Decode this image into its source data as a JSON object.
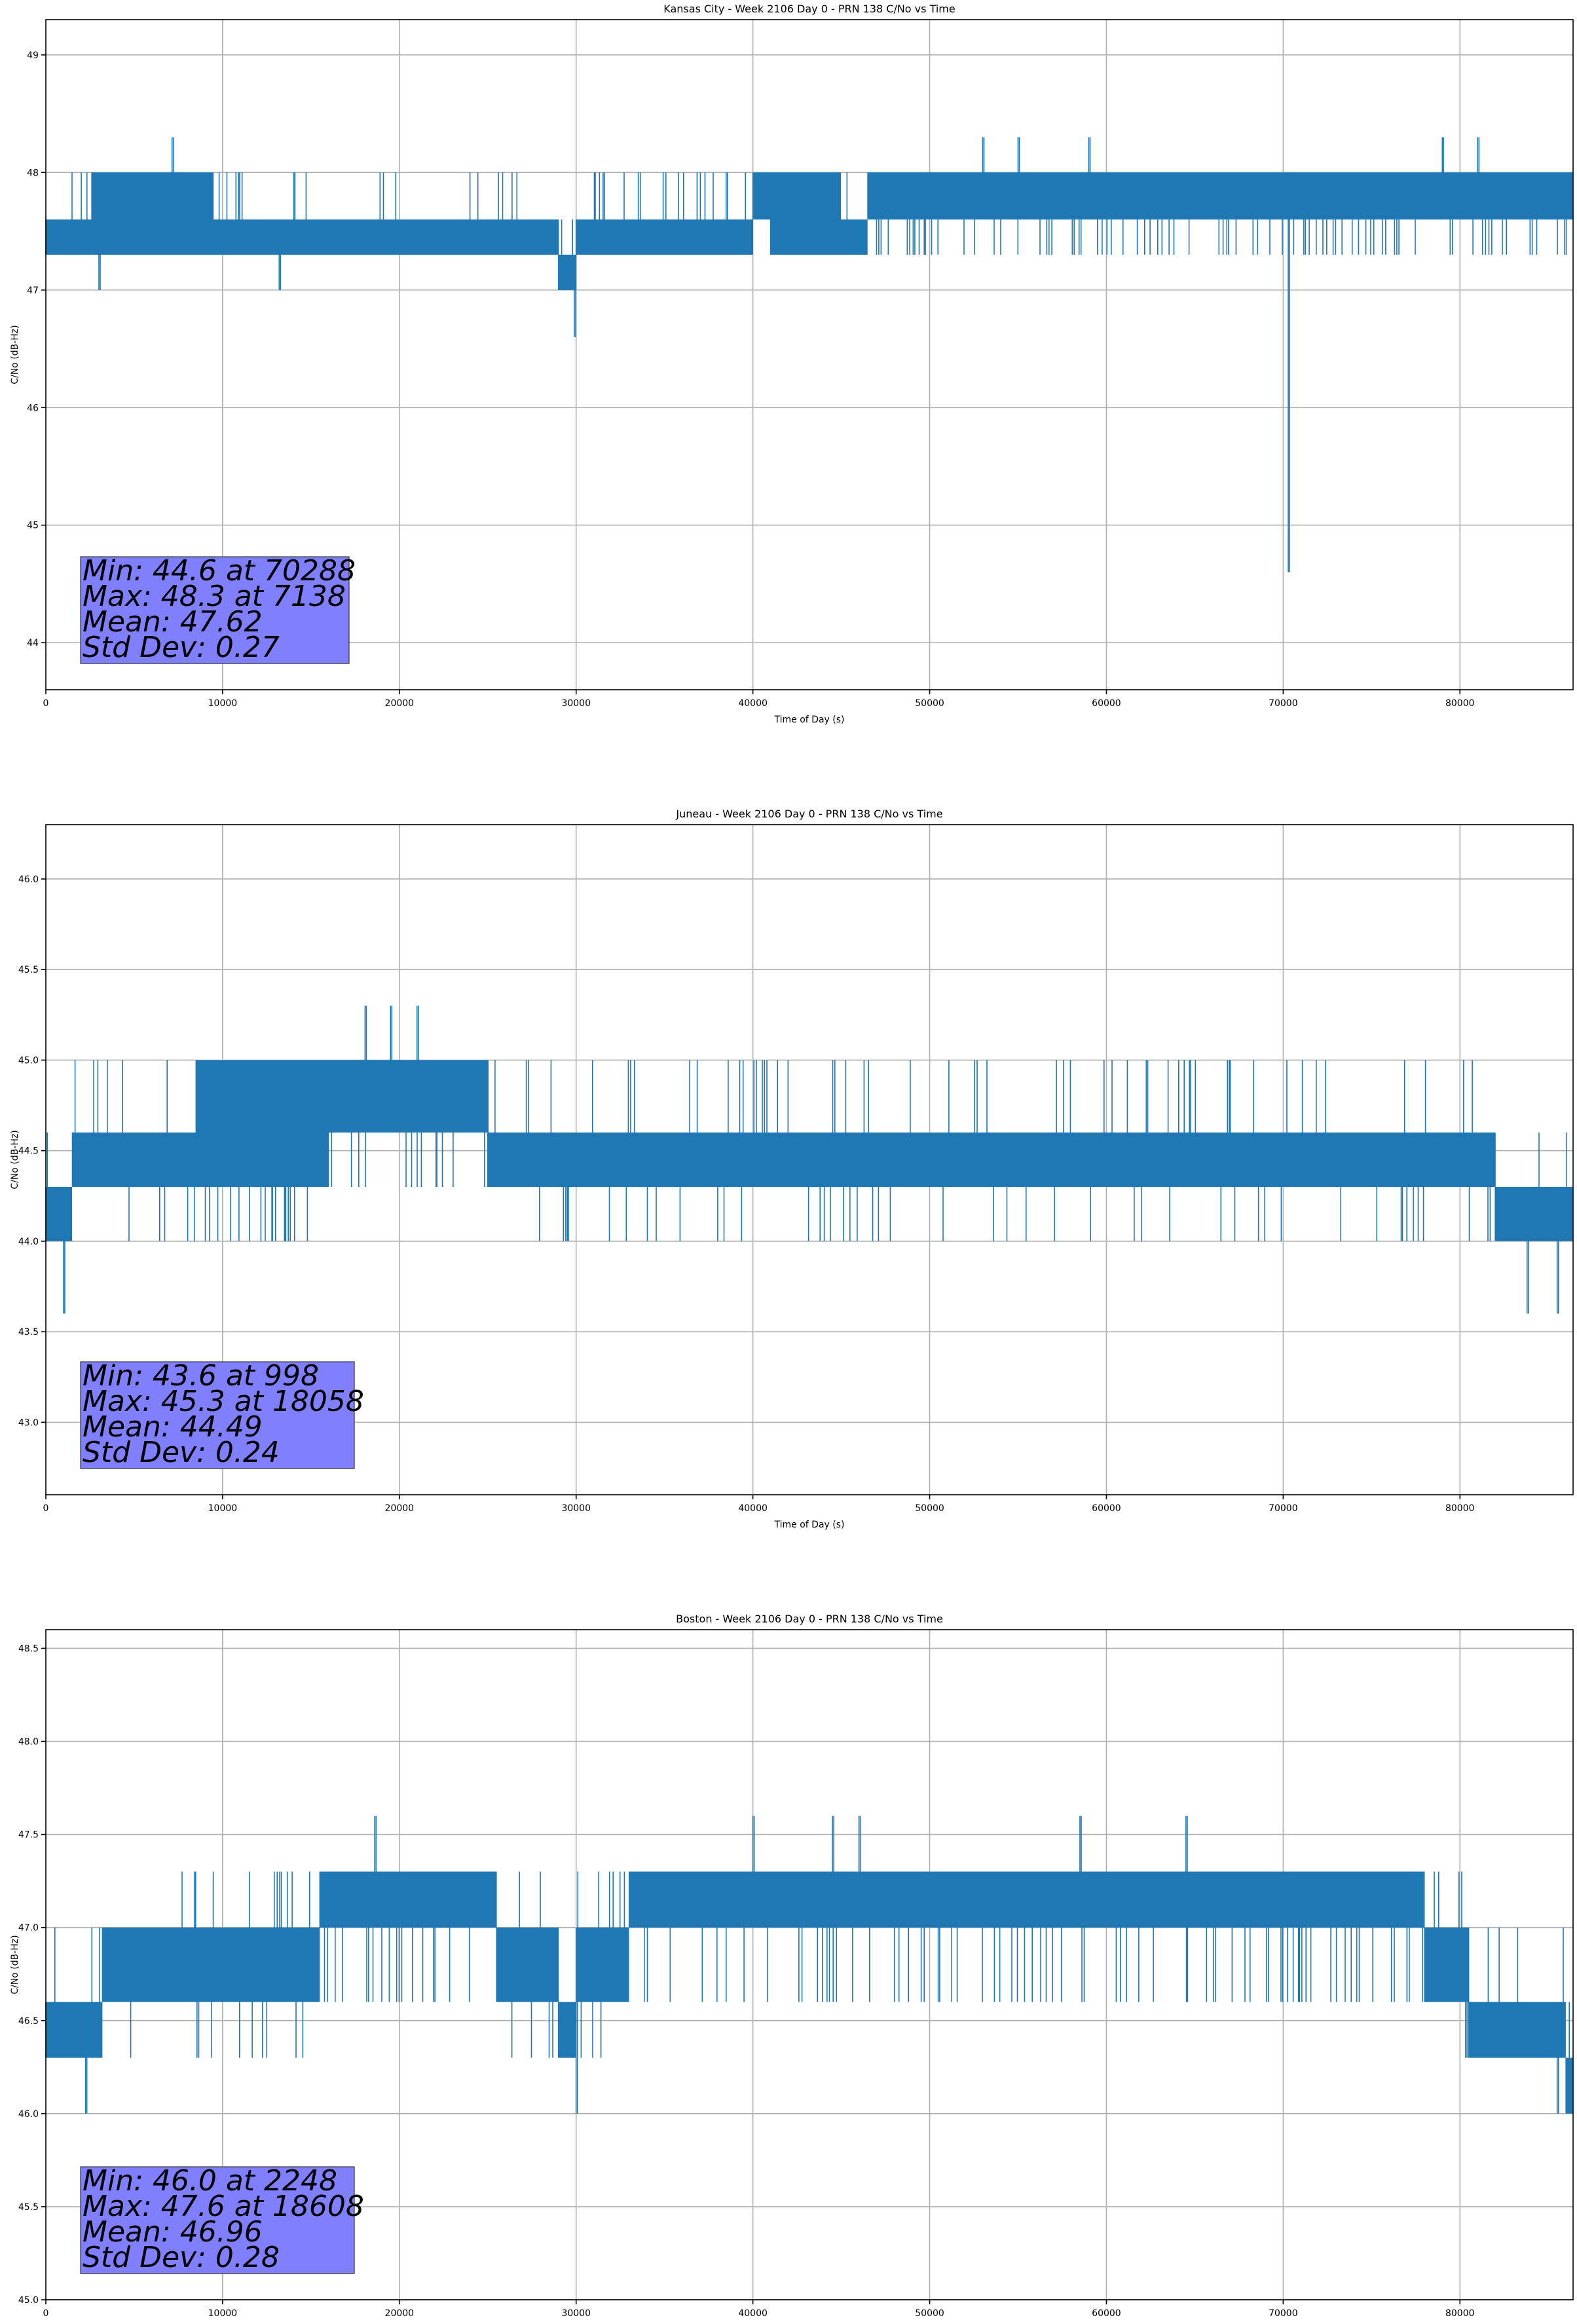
{
  "chart_data": [
    {
      "type": "line",
      "title": "Kansas City - Week 2106 Day 0 - PRN 138 C/No vs Time",
      "xlabel": "Time of Day (s)",
      "ylabel": "C/No (dB-Hz)",
      "xlim": [
        0,
        86400
      ],
      "ylim": [
        43.6,
        49.3
      ],
      "xticks": [
        0,
        10000,
        20000,
        30000,
        40000,
        50000,
        60000,
        70000,
        80000
      ],
      "yticks": [
        44,
        45,
        46,
        47,
        48,
        49
      ],
      "ytick_decimals": 0,
      "grid": true,
      "color": "#1f77b4",
      "levels": [
        47.3,
        47.6,
        48.0
      ],
      "segments": [
        {
          "x": [
            0,
            2600
          ],
          "lo": 47.3,
          "hi": 47.6
        },
        {
          "x": [
            2600,
            9500
          ],
          "lo": 47.3,
          "hi": 48.0
        },
        {
          "x": [
            9500,
            24000
          ],
          "lo": 47.3,
          "hi": 47.6
        },
        {
          "x": [
            24000,
            29000
          ],
          "lo": 47.3,
          "hi": 47.6
        },
        {
          "x": [
            29000,
            30000
          ],
          "lo": 47.0,
          "hi": 47.3
        },
        {
          "x": [
            30000,
            40000
          ],
          "lo": 47.3,
          "hi": 47.6
        },
        {
          "x": [
            40000,
            41000
          ],
          "lo": 47.6,
          "hi": 48.0
        },
        {
          "x": [
            41000,
            45000
          ],
          "lo": 47.3,
          "hi": 48.0
        },
        {
          "x": [
            45000,
            46500
          ],
          "lo": 47.3,
          "hi": 47.6
        },
        {
          "x": [
            46500,
            86400
          ],
          "lo": 47.6,
          "hi": 48.0
        }
      ],
      "spikes": [
        {
          "x": 3000,
          "y": 47.0
        },
        {
          "x": 7138,
          "y": 48.3
        },
        {
          "x": 13200,
          "y": 47.0
        },
        {
          "x": 29900,
          "y": 46.6
        },
        {
          "x": 53000,
          "y": 48.3
        },
        {
          "x": 55000,
          "y": 48.3
        },
        {
          "x": 59000,
          "y": 48.3
        },
        {
          "x": 70288,
          "y": 44.6
        },
        {
          "x": 79000,
          "y": 48.3
        },
        {
          "x": 81000,
          "y": 48.3
        }
      ],
      "stats": {
        "min": "Min: 44.6 at 70288",
        "max": "Max: 48.3 at 7138",
        "mean": "Mean: 47.62",
        "std": "Std Dev: 0.27"
      }
    },
    {
      "type": "line",
      "title": "Juneau - Week 2106 Day 0 - PRN 138 C/No vs Time",
      "xlabel": "Time of Day (s)",
      "ylabel": "C/No (dB-Hz)",
      "xlim": [
        0,
        86400
      ],
      "ylim": [
        42.6,
        46.3
      ],
      "xticks": [
        0,
        10000,
        20000,
        30000,
        40000,
        50000,
        60000,
        70000,
        80000
      ],
      "yticks": [
        43.0,
        43.5,
        44.0,
        44.5,
        45.0,
        45.5,
        46.0
      ],
      "ytick_decimals": 1,
      "grid": true,
      "color": "#1f77b4",
      "levels": [
        44.0,
        44.3,
        44.6,
        45.0
      ],
      "segments": [
        {
          "x": [
            0,
            1500
          ],
          "lo": 44.0,
          "hi": 44.3
        },
        {
          "x": [
            1500,
            8500
          ],
          "lo": 44.3,
          "hi": 44.6
        },
        {
          "x": [
            8500,
            16000
          ],
          "lo": 44.3,
          "hi": 45.0
        },
        {
          "x": [
            16000,
            25000
          ],
          "lo": 44.6,
          "hi": 45.0
        },
        {
          "x": [
            25000,
            82000
          ],
          "lo": 44.3,
          "hi": 44.6
        },
        {
          "x": [
            82000,
            86400
          ],
          "lo": 44.0,
          "hi": 44.3
        }
      ],
      "spikes": [
        {
          "x": 998,
          "y": 43.6
        },
        {
          "x": 13500,
          "y": 44.0
        },
        {
          "x": 18058,
          "y": 45.3
        },
        {
          "x": 19500,
          "y": 45.3
        },
        {
          "x": 21000,
          "y": 45.3
        },
        {
          "x": 29500,
          "y": 44.0
        },
        {
          "x": 83800,
          "y": 43.6
        },
        {
          "x": 85500,
          "y": 43.6
        }
      ],
      "stats": {
        "min": "Min: 43.6 at 998",
        "max": "Max: 45.3 at 18058",
        "mean": "Mean: 44.49",
        "std": "Std Dev: 0.24"
      }
    },
    {
      "type": "line",
      "title": "Boston - Week 2106 Day 0 - PRN 138 C/No vs Time",
      "xlabel": "Time of Day (s)",
      "ylabel": "C/No (dB-Hz)",
      "xlim": [
        0,
        86400
      ],
      "ylim": [
        45.0,
        48.6
      ],
      "xticks": [
        0,
        10000,
        20000,
        30000,
        40000,
        50000,
        60000,
        70000,
        80000
      ],
      "yticks": [
        45.0,
        45.5,
        46.0,
        46.5,
        47.0,
        47.5,
        48.0,
        48.5
      ],
      "ytick_decimals": 1,
      "grid": true,
      "color": "#1f77b4",
      "levels": [
        46.3,
        46.6,
        47.0,
        47.3
      ],
      "segments": [
        {
          "x": [
            0,
            3200
          ],
          "lo": 46.3,
          "hi": 46.6
        },
        {
          "x": [
            3200,
            15500
          ],
          "lo": 46.6,
          "hi": 47.0
        },
        {
          "x": [
            15500,
            25500
          ],
          "lo": 47.0,
          "hi": 47.3
        },
        {
          "x": [
            25500,
            29000
          ],
          "lo": 46.6,
          "hi": 47.0
        },
        {
          "x": [
            29000,
            30000
          ],
          "lo": 46.3,
          "hi": 46.6
        },
        {
          "x": [
            30000,
            33000
          ],
          "lo": 46.6,
          "hi": 47.0
        },
        {
          "x": [
            33000,
            78000
          ],
          "lo": 47.0,
          "hi": 47.3
        },
        {
          "x": [
            78000,
            80500
          ],
          "lo": 46.6,
          "hi": 47.0
        },
        {
          "x": [
            80500,
            86000
          ],
          "lo": 46.3,
          "hi": 46.6
        },
        {
          "x": [
            86000,
            86400
          ],
          "lo": 46.0,
          "hi": 46.3
        }
      ],
      "spikes": [
        {
          "x": 2248,
          "y": 46.0
        },
        {
          "x": 8400,
          "y": 47.3
        },
        {
          "x": 18608,
          "y": 47.6
        },
        {
          "x": 30000,
          "y": 46.0
        },
        {
          "x": 40000,
          "y": 47.6
        },
        {
          "x": 44500,
          "y": 47.6
        },
        {
          "x": 46000,
          "y": 47.6
        },
        {
          "x": 58500,
          "y": 47.6
        },
        {
          "x": 64500,
          "y": 47.6
        },
        {
          "x": 85500,
          "y": 46.0
        }
      ],
      "stats": {
        "min": "Min: 46.0 at 2248",
        "max": "Max: 47.6 at 18608",
        "mean": "Mean: 46.96",
        "std": "Std Dev: 0.28"
      }
    }
  ]
}
